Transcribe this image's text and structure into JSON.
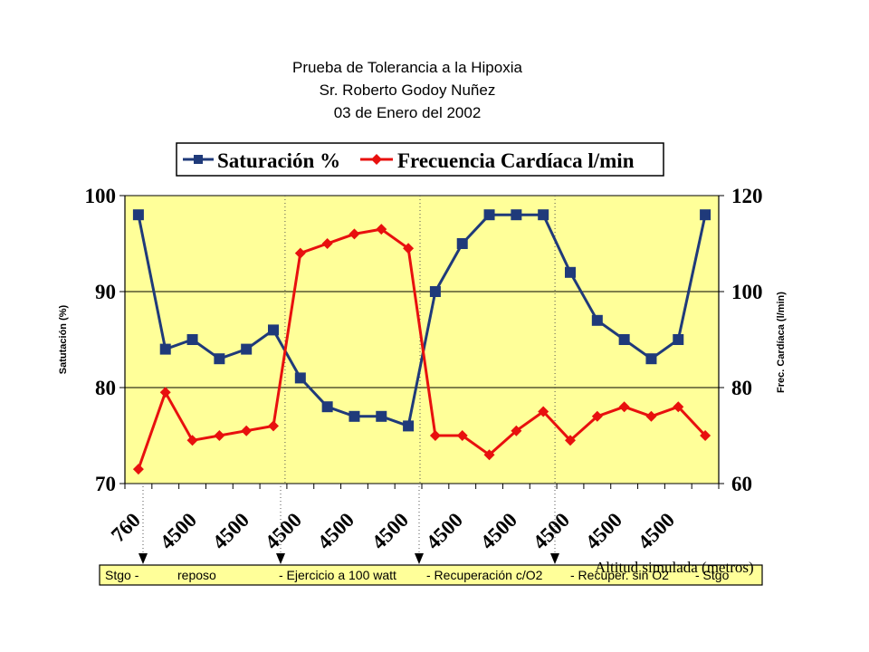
{
  "chart_data": {
    "type": "line",
    "title": [
      "Prueba de Tolerancia a la Hipoxia",
      "Sr. Roberto Godoy Nuñez",
      "03 de Enero del 2002"
    ],
    "ylabel_left": "Satutación (%)",
    "ylabel_right": "Frec. Cardíaca (l/min)",
    "xlabel": "Altitud simulada (metros)",
    "ylim_left": [
      70,
      100
    ],
    "ylim_right": [
      60,
      120
    ],
    "yticks_left": [
      "70",
      "80",
      "90",
      "100"
    ],
    "yticks_right": [
      "60",
      "80",
      "100",
      "120"
    ],
    "x_tick_labels": [
      "760",
      "4500",
      "4500",
      "4500",
      "4500",
      "4500",
      "4500",
      "4500",
      "4500",
      "4500",
      "4500"
    ],
    "n_points": 22,
    "grid": true,
    "legend_position": "top",
    "series": [
      {
        "name": "Saturación %",
        "axis": "left",
        "color": "#1F3A7A",
        "marker": "square",
        "values": [
          98,
          84,
          85,
          83,
          84,
          86,
          81,
          78,
          77,
          77,
          76,
          90,
          95,
          98,
          98,
          98,
          92,
          87,
          85,
          83,
          85,
          98
        ]
      },
      {
        "name": "Frecuencia Cardíaca l/min",
        "axis": "right",
        "color": "#E8100E",
        "marker": "diamond",
        "values": [
          63,
          79,
          69,
          70,
          71,
          72,
          108,
          110,
          112,
          113,
          109,
          70,
          70,
          66,
          71,
          75,
          69,
          74,
          76,
          74,
          76,
          70
        ]
      }
    ],
    "phases": [
      "Stgo -",
      "reposo",
      "- Ejercicio a 100 watt",
      "- Recuperación c/O2",
      "- Recuper. sin O2",
      "- Stgo"
    ],
    "colors": {
      "plot_bg": "#FFFF99",
      "legend_bg": "#FFFFFF",
      "phase_bg": "#FFFF99"
    }
  }
}
